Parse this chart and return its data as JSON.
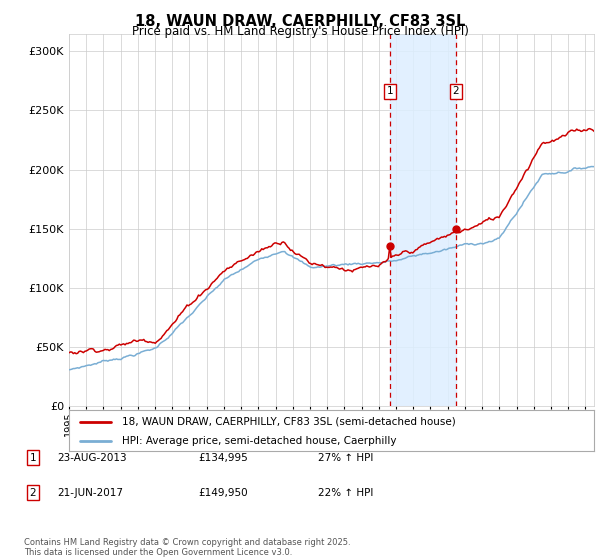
{
  "title": "18, WAUN DRAW, CAERPHILLY, CF83 3SL",
  "subtitle": "Price paid vs. HM Land Registry's House Price Index (HPI)",
  "ytick_values": [
    0,
    50000,
    100000,
    150000,
    200000,
    250000,
    300000
  ],
  "ylim": [
    0,
    315000
  ],
  "xlim_start": 1995,
  "xlim_end": 2025.5,
  "red_color": "#cc0000",
  "blue_color": "#7aaed4",
  "shade_color": "#ddeeff",
  "grid_color": "#cccccc",
  "marker1_date": 2013.65,
  "marker1_price": 134995,
  "marker2_date": 2017.47,
  "marker2_price": 149950,
  "legend_line1": "18, WAUN DRAW, CAERPHILLY, CF83 3SL (semi-detached house)",
  "legend_line2": "HPI: Average price, semi-detached house, Caerphilly",
  "footer": "Contains HM Land Registry data © Crown copyright and database right 2025.\nThis data is licensed under the Open Government Licence v3.0.",
  "background_color": "#ffffff",
  "row1_num": "1",
  "row1_date": "23-AUG-2013",
  "row1_price": "£134,995",
  "row1_hpi": "27% ↑ HPI",
  "row2_num": "2",
  "row2_date": "21-JUN-2017",
  "row2_price": "£149,950",
  "row2_hpi": "22% ↑ HPI"
}
